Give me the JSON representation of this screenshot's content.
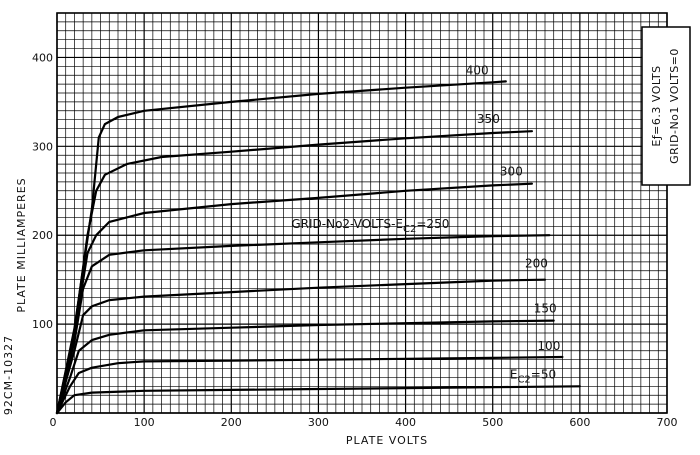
{
  "chart_data": {
    "type": "line",
    "title": "",
    "xlabel": "PLATE VOLTS",
    "ylabel": "PLATE MILLIAMPERES",
    "xlim": [
      0,
      700
    ],
    "ylim": [
      0,
      450
    ],
    "x_ticks": [
      "100",
      "200",
      "300",
      "400",
      "500",
      "600",
      "700"
    ],
    "y_ticks": [
      "100",
      "200",
      "300",
      "400"
    ],
    "grid": true,
    "figure_id": "92CM-10327",
    "conditions": [
      "Eƒ=6.3 VOLTS",
      "GRID-No1 VOLTS=0"
    ],
    "series": [
      {
        "name": "400",
        "label": "400",
        "points": [
          [
            0,
            0
          ],
          [
            20,
            95
          ],
          [
            40,
            230
          ],
          [
            48,
            310
          ],
          [
            55,
            325
          ],
          [
            70,
            333
          ],
          [
            100,
            340
          ],
          [
            200,
            350
          ],
          [
            300,
            359
          ],
          [
            400,
            366
          ],
          [
            500,
            372
          ],
          [
            515,
            373
          ]
        ]
      },
      {
        "name": "350",
        "label": "350",
        "points": [
          [
            0,
            0
          ],
          [
            20,
            92
          ],
          [
            35,
            200
          ],
          [
            45,
            250
          ],
          [
            55,
            268
          ],
          [
            80,
            280
          ],
          [
            120,
            288
          ],
          [
            200,
            294
          ],
          [
            300,
            302
          ],
          [
            400,
            309
          ],
          [
            500,
            315
          ],
          [
            545,
            317
          ]
        ]
      },
      {
        "name": "300",
        "label": "300",
        "points": [
          [
            0,
            0
          ],
          [
            20,
            88
          ],
          [
            35,
            180
          ],
          [
            45,
            200
          ],
          [
            60,
            215
          ],
          [
            100,
            225
          ],
          [
            200,
            235
          ],
          [
            300,
            242
          ],
          [
            400,
            250
          ],
          [
            500,
            256
          ],
          [
            545,
            258
          ]
        ]
      },
      {
        "name": "250",
        "label": "GRID-No2-VOLTS-E C2 =250",
        "points": [
          [
            0,
            0
          ],
          [
            20,
            80
          ],
          [
            30,
            140
          ],
          [
            40,
            165
          ],
          [
            60,
            178
          ],
          [
            100,
            183
          ],
          [
            200,
            188
          ],
          [
            300,
            192
          ],
          [
            400,
            196
          ],
          [
            500,
            199
          ],
          [
            565,
            200
          ]
        ]
      },
      {
        "name": "200",
        "label": "200",
        "points": [
          [
            0,
            0
          ],
          [
            20,
            70
          ],
          [
            30,
            110
          ],
          [
            40,
            120
          ],
          [
            60,
            127
          ],
          [
            100,
            131
          ],
          [
            200,
            136
          ],
          [
            300,
            141
          ],
          [
            400,
            145
          ],
          [
            500,
            149
          ],
          [
            560,
            150
          ]
        ]
      },
      {
        "name": "150",
        "label": "150",
        "points": [
          [
            0,
            0
          ],
          [
            15,
            40
          ],
          [
            25,
            70
          ],
          [
            40,
            82
          ],
          [
            60,
            88
          ],
          [
            100,
            93
          ],
          [
            200,
            96
          ],
          [
            300,
            99
          ],
          [
            400,
            101
          ],
          [
            500,
            103
          ],
          [
            570,
            104
          ]
        ]
      },
      {
        "name": "100",
        "label": "100",
        "points": [
          [
            0,
            0
          ],
          [
            15,
            30
          ],
          [
            25,
            45
          ],
          [
            40,
            51
          ],
          [
            70,
            56
          ],
          [
            100,
            58
          ],
          [
            200,
            59
          ],
          [
            300,
            60
          ],
          [
            400,
            61
          ],
          [
            500,
            62
          ],
          [
            580,
            63
          ]
        ]
      },
      {
        "name": "50",
        "label": "E C2 =50",
        "points": [
          [
            0,
            0
          ],
          [
            10,
            12
          ],
          [
            20,
            20
          ],
          [
            40,
            23
          ],
          [
            100,
            25
          ],
          [
            200,
            26
          ],
          [
            300,
            27
          ],
          [
            400,
            28
          ],
          [
            500,
            29
          ],
          [
            600,
            30
          ]
        ]
      }
    ]
  }
}
